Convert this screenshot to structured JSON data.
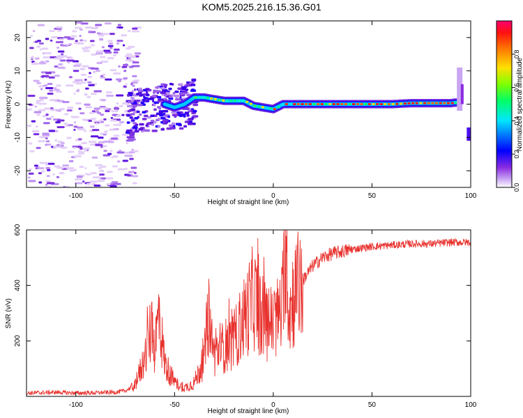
{
  "title": "KOM5.2025.216.15.36.G01",
  "colors": {
    "snr_line": "#e8322e",
    "background": "#ffffff",
    "axis": "#000000",
    "colormap": [
      "#ffffff",
      "#d9b8f5",
      "#b47cf0",
      "#8a2be2",
      "#4b0ff0",
      "#0000ff",
      "#00bfff",
      "#00ffcc",
      "#00ff40",
      "#c8ff00",
      "#ffd700",
      "#ff8000",
      "#ff2000",
      "#ff0080"
    ]
  },
  "chart_data": [
    {
      "type": "heatmap",
      "xlabel": "Height of straight line (km)",
      "ylabel": "Frequency (Hz)",
      "xlim": [
        -125,
        100
      ],
      "ylim": [
        -25,
        25
      ],
      "xticks": [
        -100,
        -50,
        0,
        50,
        100
      ],
      "yticks": [
        -20,
        -10,
        0,
        10,
        20
      ],
      "xtick_labels": [
        "-100",
        "-50",
        "0",
        "50",
        "100"
      ],
      "ytick_labels": [
        "-20",
        "-10",
        "0",
        "10",
        "20"
      ],
      "ridge": {
        "x": [
          -65,
          -55,
          -50,
          -45,
          -40,
          -35,
          -30,
          -25,
          -20,
          -15,
          -10,
          -5,
          0,
          5,
          10,
          20,
          30,
          40,
          50,
          60,
          70,
          80,
          90,
          93
        ],
        "y": [
          -2,
          0,
          -1,
          0,
          2,
          2,
          1.5,
          1,
          1,
          1,
          -0.5,
          -1,
          -1.5,
          0,
          0,
          0,
          0,
          0,
          0,
          0,
          0.3,
          0.3,
          0.3,
          0.5
        ]
      },
      "colorbar": {
        "label": "Normalized spectral amplitude",
        "range": [
          0,
          1
        ],
        "ticks": [
          0.0,
          0.2,
          0.4,
          0.6,
          0.8
        ],
        "tick_labels": [
          "0.0",
          "0.2",
          "0.4",
          "0.6",
          "0.8"
        ]
      }
    },
    {
      "type": "line",
      "xlabel": "Height of straight line (km)",
      "ylabel": "SNR (v/v)",
      "xlim": [
        -125,
        100
      ],
      "ylim": [
        0,
        600
      ],
      "xticks": [
        -100,
        -50,
        0,
        50,
        100
      ],
      "yticks": [
        200,
        400,
        600
      ],
      "xtick_labels": [
        "-100",
        "-50",
        "0",
        "50",
        "100"
      ],
      "ytick_labels": [
        "200",
        "400",
        "600"
      ],
      "series": [
        {
          "x": [
            -125,
            -110,
            -100,
            -90,
            -80,
            -75,
            -70,
            -65,
            -62,
            -60,
            -58,
            -55,
            -50,
            -45,
            -40,
            -35,
            -33,
            -30,
            -25,
            -20,
            -15,
            -10,
            -5,
            0,
            5,
            6,
            8,
            10,
            15,
            20,
            25,
            30,
            40,
            50,
            60,
            70,
            80,
            90,
            100
          ],
          "y": [
            12,
            15,
            12,
            13,
            15,
            20,
            40,
            140,
            240,
            170,
            300,
            120,
            50,
            30,
            50,
            130,
            300,
            150,
            180,
            200,
            280,
            360,
            280,
            260,
            320,
            600,
            300,
            360,
            420,
            470,
            500,
            515,
            530,
            540,
            545,
            550,
            550,
            555,
            555
          ]
        }
      ]
    }
  ]
}
